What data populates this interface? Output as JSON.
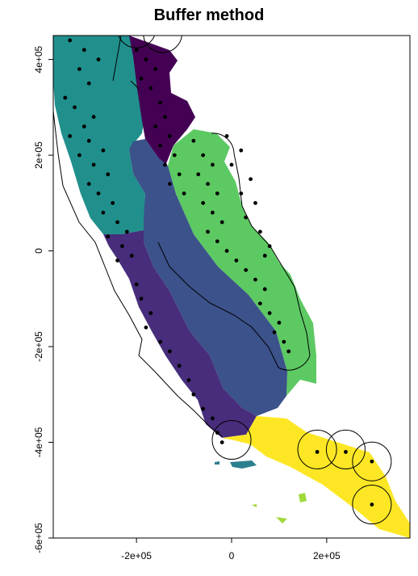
{
  "map": {
    "title": "Buffer method",
    "x_ticks": [
      {
        "value": -200000,
        "label": "-2e+05"
      },
      {
        "value": 0,
        "label": "0"
      },
      {
        "value": 200000,
        "label": "2e+05"
      }
    ],
    "y_ticks": [
      {
        "value": 400000,
        "label": "4e+05"
      },
      {
        "value": 200000,
        "label": "2e+05"
      },
      {
        "value": 0,
        "label": "0"
      },
      {
        "value": -200000,
        "label": "-2e+05"
      },
      {
        "value": -400000,
        "label": "-4e+05"
      },
      {
        "value": -600000,
        "label": "-6e+05"
      }
    ],
    "xlim": [
      -375000,
      375000
    ],
    "ylim": [
      -600000,
      450000
    ],
    "fold_colors": {
      "fold-1": "#440154",
      "fold-2": "#3b528b",
      "fold-3": "#21908d",
      "fold-4": "#5dc963",
      "fold-5": "#fde725",
      "fold-6": "#472d7b",
      "islands-a": "#2c7f8e",
      "islands-b": "#a0d93c"
    },
    "points": [
      [
        -340000,
        440000
      ],
      [
        -310000,
        420000
      ],
      [
        -280000,
        400000
      ],
      [
        -320000,
        380000
      ],
      [
        -300000,
        350000
      ],
      [
        -350000,
        320000
      ],
      [
        -330000,
        300000
      ],
      [
        -290000,
        280000
      ],
      [
        -310000,
        260000
      ],
      [
        -340000,
        240000
      ],
      [
        -300000,
        230000
      ],
      [
        -270000,
        210000
      ],
      [
        -320000,
        200000
      ],
      [
        -290000,
        180000
      ],
      [
        -260000,
        160000
      ],
      [
        -300000,
        140000
      ],
      [
        -280000,
        120000
      ],
      [
        -250000,
        100000
      ],
      [
        -270000,
        80000
      ],
      [
        -240000,
        60000
      ],
      [
        -220000,
        40000
      ],
      [
        -260000,
        30000
      ],
      [
        -230000,
        10000
      ],
      [
        -210000,
        -10000
      ],
      [
        -240000,
        -20000
      ],
      [
        -200000,
        420000
      ],
      [
        -180000,
        400000
      ],
      [
        -160000,
        380000
      ],
      [
        -190000,
        360000
      ],
      [
        -170000,
        340000
      ],
      [
        -150000,
        310000
      ],
      [
        -140000,
        280000
      ],
      [
        -160000,
        260000
      ],
      [
        -130000,
        240000
      ],
      [
        -150000,
        220000
      ],
      [
        -120000,
        200000
      ],
      [
        -140000,
        180000
      ],
      [
        -110000,
        160000
      ],
      [
        -130000,
        140000
      ],
      [
        -100000,
        120000
      ],
      [
        -80000,
        230000
      ],
      [
        -60000,
        200000
      ],
      [
        -40000,
        180000
      ],
      [
        -70000,
        160000
      ],
      [
        -50000,
        140000
      ],
      [
        -30000,
        120000
      ],
      [
        -60000,
        100000
      ],
      [
        -40000,
        80000
      ],
      [
        -20000,
        60000
      ],
      [
        -50000,
        40000
      ],
      [
        -30000,
        20000
      ],
      [
        -10000,
        0
      ],
      [
        10000,
        -20000
      ],
      [
        30000,
        -40000
      ],
      [
        50000,
        -60000
      ],
      [
        70000,
        -80000
      ],
      [
        60000,
        -110000
      ],
      [
        80000,
        -130000
      ],
      [
        100000,
        -150000
      ],
      [
        90000,
        -170000
      ],
      [
        110000,
        -190000
      ],
      [
        120000,
        -210000
      ],
      [
        -10000,
        240000
      ],
      [
        20000,
        210000
      ],
      [
        0,
        180000
      ],
      [
        40000,
        150000
      ],
      [
        20000,
        120000
      ],
      [
        50000,
        100000
      ],
      [
        30000,
        70000
      ],
      [
        60000,
        40000
      ],
      [
        80000,
        10000
      ],
      [
        70000,
        -10000
      ],
      [
        -200000,
        -70000
      ],
      [
        -190000,
        -100000
      ],
      [
        -170000,
        -130000
      ],
      [
        -180000,
        -160000
      ],
      [
        -150000,
        -190000
      ],
      [
        -130000,
        -210000
      ],
      [
        -110000,
        -240000
      ],
      [
        -90000,
        -270000
      ],
      [
        -80000,
        -300000
      ],
      [
        -60000,
        -330000
      ],
      [
        -40000,
        -350000
      ],
      [
        -30000,
        -380000
      ],
      [
        -20000,
        -400000
      ],
      [
        180000,
        -420000
      ],
      [
        240000,
        -420000
      ],
      [
        295000,
        -440000
      ],
      [
        295000,
        -530000
      ]
    ],
    "buffer_circles": [
      [
        180000,
        -415000
      ],
      [
        240000,
        -415000
      ],
      [
        295000,
        -440000
      ],
      [
        295000,
        -530000
      ],
      [
        0,
        -395000
      ],
      [
        -200000,
        465000
      ],
      [
        -145000,
        455000
      ]
    ]
  }
}
